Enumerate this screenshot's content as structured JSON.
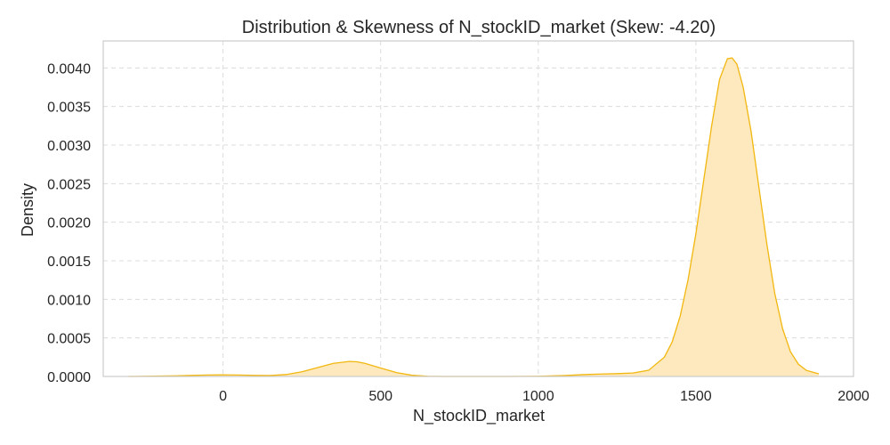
{
  "chart_data": {
    "type": "area",
    "title": "Distribution & Skewness of N_stockID_market (Skew: -4.20)",
    "xlabel": "N_stockID_market",
    "ylabel": "Density",
    "xlim": [
      -380,
      2000
    ],
    "ylim": [
      0,
      0.00435
    ],
    "xticks": [
      0,
      500,
      1000,
      1500,
      2000
    ],
    "xtick_labels": [
      "0",
      "500",
      "1000",
      "1500",
      "2000"
    ],
    "yticks": [
      0,
      0.0005,
      0.001,
      0.0015,
      0.002,
      0.0025,
      0.003,
      0.0035,
      0.004
    ],
    "ytick_labels": [
      "0.0000",
      "0.0005",
      "0.0010",
      "0.0015",
      "0.0020",
      "0.0025",
      "0.0030",
      "0.0035",
      "0.0040"
    ],
    "grid": true,
    "series": [
      {
        "line_color": "#f2b70f",
        "fill_color": "#fde9bd",
        "x": [
          -300,
          -250,
          -200,
          -150,
          -100,
          -50,
          0,
          50,
          100,
          150,
          200,
          250,
          300,
          350,
          400,
          425,
          450,
          500,
          550,
          600,
          650,
          700,
          800,
          900,
          1000,
          1050,
          1100,
          1150,
          1200,
          1250,
          1300,
          1350,
          1400,
          1425,
          1450,
          1475,
          1500,
          1525,
          1550,
          1575,
          1600,
          1615,
          1630,
          1650,
          1675,
          1700,
          1725,
          1750,
          1775,
          1800,
          1825,
          1850,
          1875,
          1890
        ],
        "y": [
          0.0,
          2e-06,
          5e-06,
          9e-06,
          1.4e-05,
          1.9e-05,
          2.1e-05,
          1.9e-05,
          1.4e-05,
          1.2e-05,
          2.5e-05,
          6e-05,
          0.000115,
          0.00017,
          0.000195,
          0.00019,
          0.00017,
          0.00011,
          5e-05,
          1.5e-05,
          3e-06,
          0.0,
          0.0,
          0.0,
          3e-06,
          8e-06,
          1.5e-05,
          2.5e-05,
          3.2e-05,
          3.7e-05,
          4.5e-05,
          8e-05,
          0.00025,
          0.00045,
          0.00078,
          0.00125,
          0.00185,
          0.00255,
          0.00325,
          0.00385,
          0.00412,
          0.00413,
          0.00405,
          0.00375,
          0.00318,
          0.00245,
          0.00172,
          0.00108,
          0.00062,
          0.00032,
          0.00016,
          8e-05,
          5e-05,
          3.5e-05
        ]
      }
    ]
  }
}
